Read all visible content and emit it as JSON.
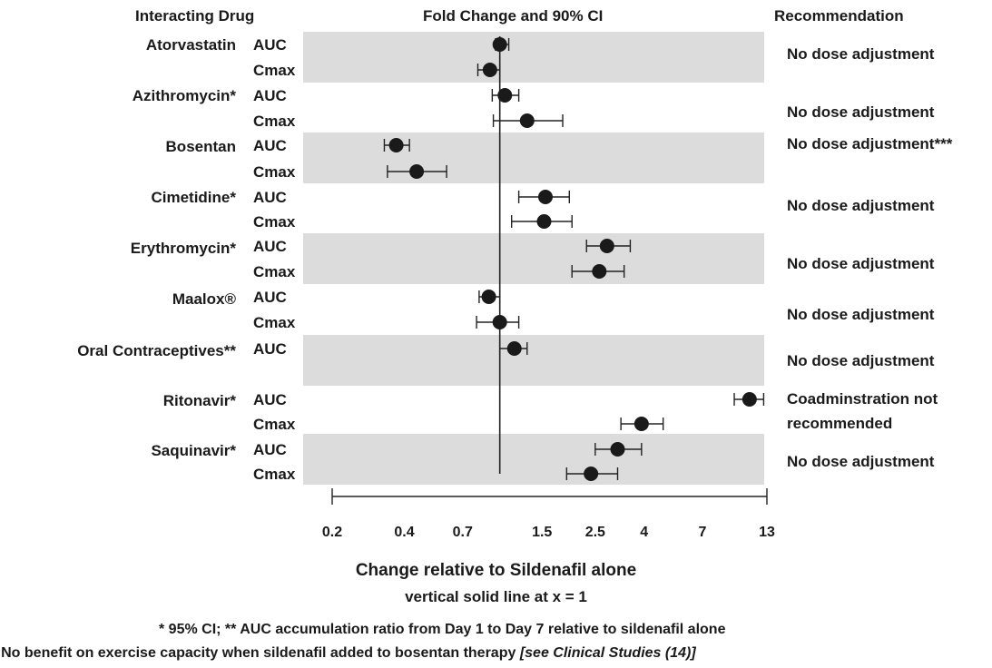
{
  "headers": {
    "drug": "Interacting Drug",
    "plot": "Fold Change and 90% CI",
    "recommendation": "Recommendation"
  },
  "groups": [
    {
      "drug": "Atorvastatin",
      "recommendation": "No dose adjustment"
    },
    {
      "drug": "Azithromycin*",
      "recommendation": "No dose adjustment"
    },
    {
      "drug": "Bosentan",
      "recommendation": "No dose adjustment***"
    },
    {
      "drug": "Cimetidine*",
      "recommendation": "No dose adjustment"
    },
    {
      "drug": "Erythromycin*",
      "recommendation": "No dose adjustment"
    },
    {
      "drug": "Maalox®",
      "recommendation": "No dose adjustment"
    },
    {
      "drug": "Oral Contraceptives**",
      "recommendation": "No dose adjustment"
    },
    {
      "drug": "Ritonavir*",
      "recommendation_line1": "Coadminstration not",
      "recommendation_line2": "recommended"
    },
    {
      "drug": "Saquinavir*",
      "recommendation": "No dose adjustment"
    }
  ],
  "chart_data": {
    "type": "forest",
    "xlabel": "Change relative to Sildenafil alone",
    "xlabel_note": "vertical solid line at x = 1",
    "x_scale": "log",
    "xlim": [
      0.2,
      13
    ],
    "reference_line": 1,
    "x_ticks": [
      {
        "value": 0.2,
        "label": "0.2"
      },
      {
        "value": 0.4,
        "label": "0.4"
      },
      {
        "value": 0.7,
        "label": "0.7"
      },
      {
        "value": 1.5,
        "label": "1.5"
      },
      {
        "value": 2.5,
        "label": "2.5"
      },
      {
        "value": 4,
        "label": "4"
      },
      {
        "value": 7,
        "label": "7"
      },
      {
        "value": 13,
        "label": "13"
      }
    ],
    "rows": [
      {
        "drug": "Atorvastatin",
        "metric": "AUC",
        "estimate": 1.0,
        "ci": [
          0.96,
          1.09
        ]
      },
      {
        "drug": "Atorvastatin",
        "metric": "Cmax",
        "estimate": 0.91,
        "ci": [
          0.81,
          1.0
        ]
      },
      {
        "drug": "Azithromycin*",
        "metric": "AUC",
        "estimate": 1.05,
        "ci": [
          0.93,
          1.2
        ]
      },
      {
        "drug": "Azithromycin*",
        "metric": "Cmax",
        "estimate": 1.3,
        "ci": [
          0.94,
          1.83
        ]
      },
      {
        "drug": "Bosentan",
        "metric": "AUC",
        "estimate": 0.37,
        "ci": [
          0.33,
          0.42
        ]
      },
      {
        "drug": "Bosentan",
        "metric": "Cmax",
        "estimate": 0.45,
        "ci": [
          0.34,
          0.6
        ]
      },
      {
        "drug": "Cimetidine*",
        "metric": "AUC",
        "estimate": 1.55,
        "ci": [
          1.2,
          1.95
        ]
      },
      {
        "drug": "Cimetidine*",
        "metric": "Cmax",
        "estimate": 1.53,
        "ci": [
          1.12,
          2.0
        ]
      },
      {
        "drug": "Erythromycin*",
        "metric": "AUC",
        "estimate": 2.8,
        "ci": [
          2.3,
          3.5
        ]
      },
      {
        "drug": "Erythromycin*",
        "metric": "Cmax",
        "estimate": 2.6,
        "ci": [
          2.0,
          3.3
        ]
      },
      {
        "drug": "Maalox®",
        "metric": "AUC",
        "estimate": 0.9,
        "ci": [
          0.82,
          1.0
        ]
      },
      {
        "drug": "Maalox®",
        "metric": "Cmax",
        "estimate": 1.0,
        "ci": [
          0.8,
          1.2
        ]
      },
      {
        "drug": "Oral Contraceptives**",
        "metric": "AUC",
        "estimate": 1.15,
        "ci": [
          1.0,
          1.3
        ]
      },
      {
        "drug": "Ritonavir*",
        "metric": "AUC",
        "estimate": 11.0,
        "ci": [
          9.5,
          12.6
        ]
      },
      {
        "drug": "Ritonavir*",
        "metric": "Cmax",
        "estimate": 3.9,
        "ci": [
          3.2,
          4.8
        ]
      },
      {
        "drug": "Saquinavir*",
        "metric": "AUC",
        "estimate": 3.1,
        "ci": [
          2.5,
          3.9
        ]
      },
      {
        "drug": "Saquinavir*",
        "metric": "Cmax",
        "estimate": 2.4,
        "ci": [
          1.9,
          3.1
        ]
      }
    ]
  },
  "footnotes": {
    "line1": "* 95% CI; ** AUC accumulation ratio from Day 1 to Day 7 relative to sildenafil alone",
    "line2_text": "*** No benefit on exercise capacity when sildenafil added to bosentan therapy ",
    "line2_italic": "[see Clinical Studies (14)]"
  }
}
